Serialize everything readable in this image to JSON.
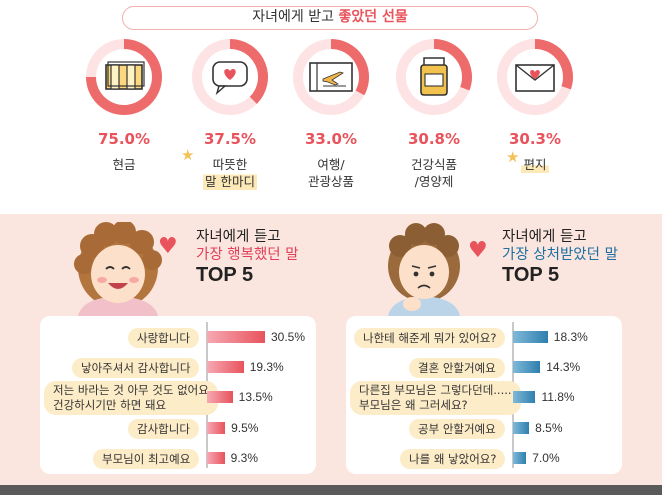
{
  "header": {
    "title_prefix": "자녀에게 받고 ",
    "title_highlight": "좋았던 선물"
  },
  "gifts": [
    {
      "percent": "75.0%",
      "value": 75.0,
      "label": "현금",
      "icon": "cash-icon"
    },
    {
      "percent": "37.5%",
      "value": 37.5,
      "label": "따뜻한\n말 한마디",
      "icon": "heart-speech-bubble-icon"
    },
    {
      "percent": "33.0%",
      "value": 33.0,
      "label": "여행/\n관광상품",
      "icon": "plane-ticket-icon"
    },
    {
      "percent": "30.8%",
      "value": 30.8,
      "label": "건강식품\n/영양제",
      "icon": "supplement-jar-icon"
    },
    {
      "percent": "30.3%",
      "value": 30.3,
      "label": "편지",
      "icon": "heart-letter-icon"
    }
  ],
  "happy": {
    "title_line1": "자녀에게 듣고",
    "title_line2": "가장 행복했던 말",
    "title_line3": "TOP 5",
    "items": [
      {
        "text": "사랑합니다",
        "value": 30.5,
        "label": "30.5%"
      },
      {
        "text": "낳아주셔서 감사합니다",
        "value": 19.3,
        "label": "19.3%"
      },
      {
        "text": "저는 바라는 것 아무 것도 없어요\n건강하시기만 하면 돼요",
        "value": 13.5,
        "label": "13.5%"
      },
      {
        "text": "감사합니다",
        "value": 9.5,
        "label": "9.5%"
      },
      {
        "text": "부모님이 최고예요",
        "value": 9.3,
        "label": "9.3%"
      }
    ]
  },
  "hurt": {
    "title_line1": "자녀에게 듣고",
    "title_line2": "가장 상처받았던 말",
    "title_line3": "TOP 5",
    "items": [
      {
        "text": "나한테 해준게 뭐가 있어요?",
        "value": 18.3,
        "label": "18.3%"
      },
      {
        "text": "결혼 안할거예요",
        "value": 14.3,
        "label": "14.3%"
      },
      {
        "text": "다른집 부모님은 그렇다던데.....\n부모님은 왜 그러세요?",
        "value": 11.8,
        "label": "11.8%"
      },
      {
        "text": "공부 안할거예요",
        "value": 8.5,
        "label": "8.5%"
      },
      {
        "text": "나를 왜 낳았어요?",
        "value": 7.0,
        "label": "7.0%"
      }
    ]
  },
  "colors": {
    "accent": "#e8535c",
    "blue": "#2f7fae",
    "bg_bottom": "#fbe6df"
  }
}
